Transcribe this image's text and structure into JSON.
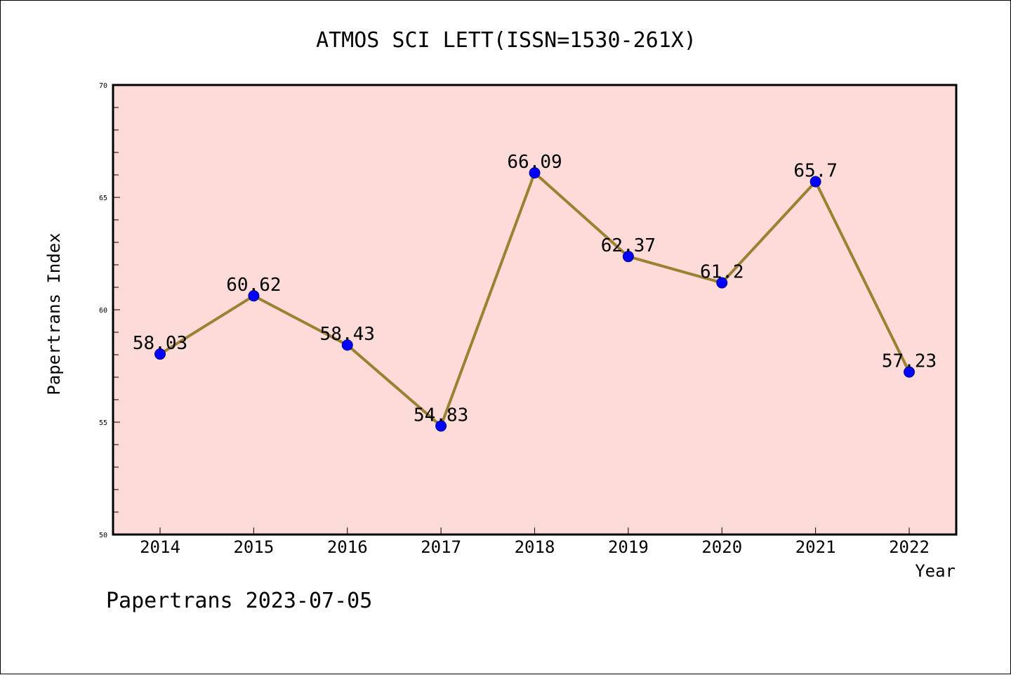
{
  "chart_data": {
    "type": "line",
    "title": "ATMOS SCI LETT(ISSN=1530-261X)",
    "xlabel": "Year",
    "ylabel": "Papertrans Index",
    "categories": [
      "2014",
      "2015",
      "2016",
      "2017",
      "2018",
      "2019",
      "2020",
      "2021",
      "2022"
    ],
    "values": [
      58.03,
      60.62,
      58.43,
      54.83,
      66.09,
      62.37,
      61.2,
      65.7,
      57.23
    ],
    "data_labels": [
      "58.03",
      "60.62",
      "58.43",
      "54.83",
      "66.09",
      "62.37",
      "61.2",
      "65.7",
      "57.23"
    ],
    "ylim": [
      50,
      70
    ],
    "yticks": [
      "50",
      "55",
      "60",
      "65",
      "70"
    ],
    "grid": false,
    "colors": {
      "plot_background": "#fddbd8",
      "line": "#9b8132",
      "marker": "#0000ff",
      "marker_edge": "#000080"
    }
  },
  "footer": "Papertrans 2023-07-05"
}
